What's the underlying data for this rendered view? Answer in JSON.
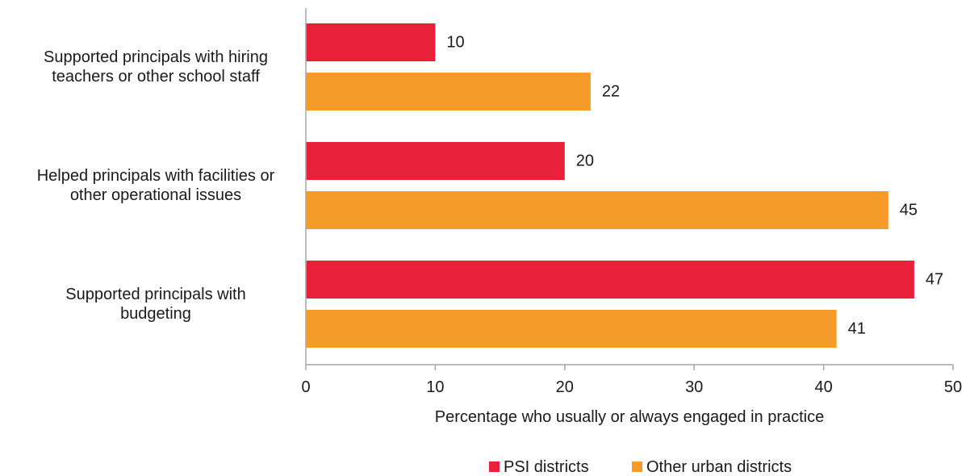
{
  "chart_data": {
    "type": "bar",
    "orientation": "horizontal",
    "categories": [
      [
        "Supported principals with hiring",
        "teachers or other school staff"
      ],
      [
        "Helped principals with facilities or",
        "other operational issues"
      ],
      [
        "Supported principals with",
        "budgeting"
      ]
    ],
    "series": [
      {
        "name": "PSI districts",
        "color": "#e8203a",
        "values": [
          10,
          20,
          47
        ]
      },
      {
        "name": "Other urban districts",
        "color": "#f59b2a",
        "values": [
          22,
          45,
          41
        ]
      }
    ],
    "xlabel": "Percentage who usually or always engaged in practice",
    "ylabel": "",
    "xlim": [
      0,
      50
    ],
    "xticks": [
      0,
      10,
      20,
      30,
      40,
      50
    ],
    "grid": false,
    "legend_position": "bottom-right",
    "data_labels": true
  }
}
